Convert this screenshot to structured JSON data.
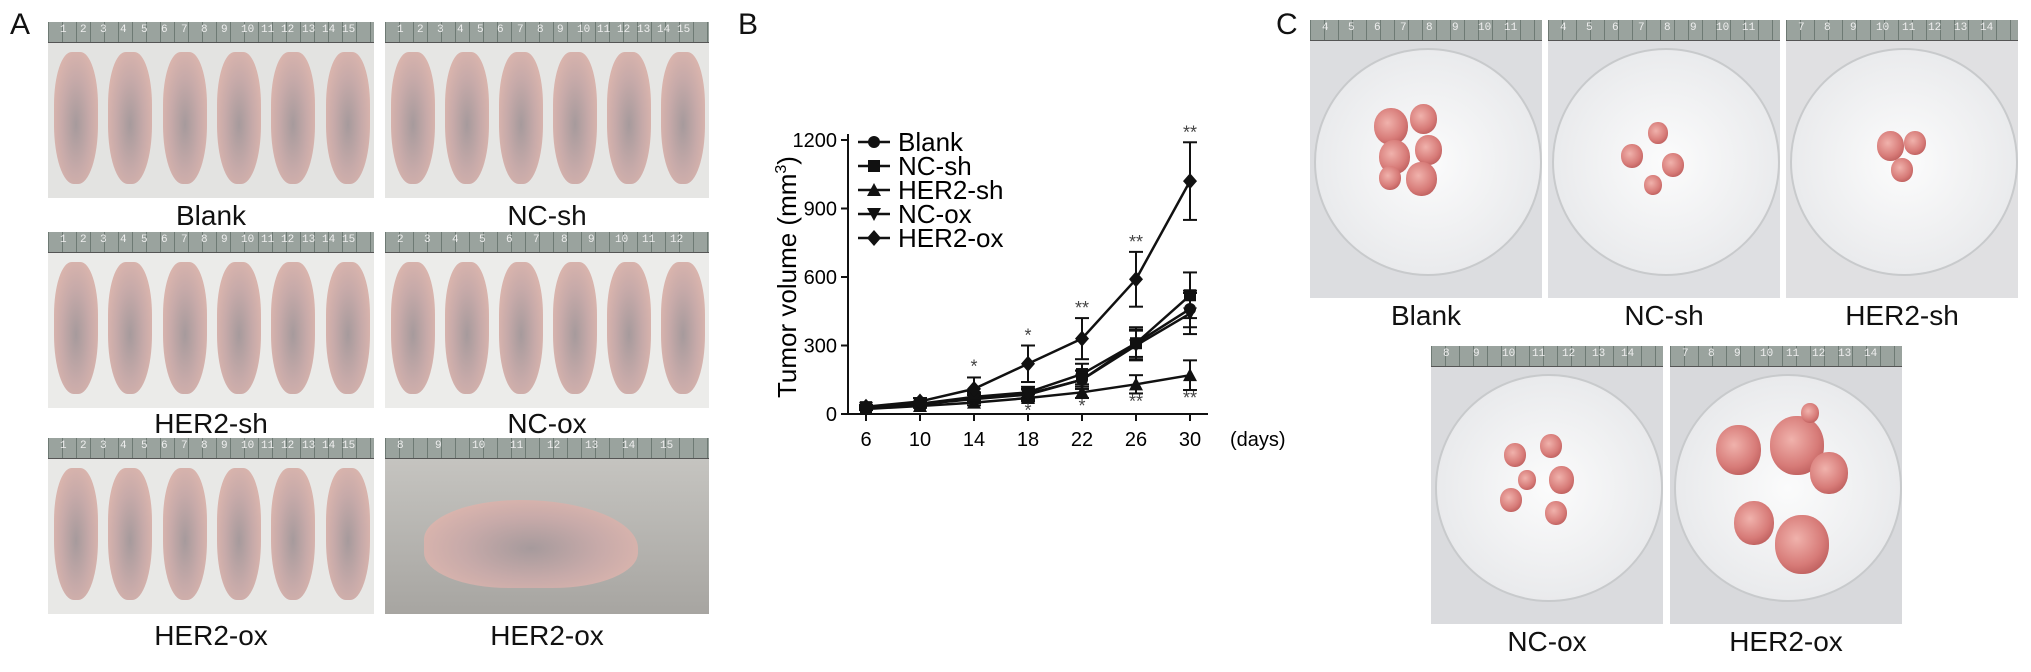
{
  "panels": {
    "a": {
      "letter": "A",
      "photos": [
        {
          "caption": "Blank",
          "mice": 6,
          "ruler": [
            "1",
            "2",
            "3",
            "4",
            "5",
            "6",
            "7",
            "8",
            "9",
            "10",
            "11",
            "12",
            "13",
            "14",
            "15"
          ]
        },
        {
          "caption": "NC-sh",
          "mice": 6,
          "ruler": [
            "1",
            "2",
            "3",
            "4",
            "5",
            "6",
            "7",
            "8",
            "9",
            "10",
            "11",
            "12",
            "13",
            "14",
            "15"
          ]
        },
        {
          "caption": "HER2-sh",
          "mice": 6,
          "ruler": [
            "1",
            "2",
            "3",
            "4",
            "5",
            "6",
            "7",
            "8",
            "9",
            "10",
            "11",
            "12",
            "13",
            "14",
            "15"
          ]
        },
        {
          "caption": "NC-ox",
          "mice": 6,
          "ruler": [
            "2",
            "3",
            "4",
            "5",
            "6",
            "7",
            "8",
            "9",
            "10",
            "11",
            "12"
          ]
        },
        {
          "caption": "HER2-ox",
          "mice": 6,
          "ruler": [
            "1",
            "2",
            "3",
            "4",
            "5",
            "6",
            "7",
            "8",
            "9",
            "10",
            "11",
            "12",
            "13",
            "14",
            "15"
          ]
        },
        {
          "caption": "HER2-ox",
          "mice": 1,
          "ruler": [
            "8",
            "9",
            "10",
            "11",
            "12",
            "13",
            "14",
            "15"
          ]
        }
      ]
    },
    "b": {
      "letter": "B"
    },
    "c": {
      "letter": "C",
      "photos": [
        {
          "caption": "Blank",
          "ruler": [
            "4",
            "5",
            "6",
            "7",
            "8",
            "9",
            "10",
            "11"
          ]
        },
        {
          "caption": "NC-sh",
          "ruler": [
            "4",
            "5",
            "6",
            "7",
            "8",
            "9",
            "10",
            "11"
          ]
        },
        {
          "caption": "HER2-sh",
          "ruler": [
            "7",
            "8",
            "9",
            "10",
            "11",
            "12",
            "13",
            "14"
          ]
        },
        {
          "caption": "NC-ox",
          "ruler": [
            "8",
            "9",
            "10",
            "11",
            "12",
            "13",
            "14"
          ]
        },
        {
          "caption": "HER2-ox",
          "ruler": [
            "7",
            "8",
            "9",
            "10",
            "11",
            "12",
            "13",
            "14"
          ]
        }
      ]
    }
  },
  "chart_data": {
    "type": "line",
    "title": "",
    "xlabel": "(days)",
    "ylabel": "Tumor volume (mm",
    "ylabel_sup": "3",
    "ylabel_close": ")",
    "x": [
      6,
      10,
      14,
      18,
      22,
      26,
      30
    ],
    "x_ticks": [
      "6",
      "10",
      "14",
      "18",
      "22",
      "26",
      "30"
    ],
    "y_ticks": [
      "0",
      "300",
      "600",
      "900",
      "1200"
    ],
    "y_tick_values": [
      0,
      300,
      600,
      900,
      1200
    ],
    "ylim": [
      0,
      1200
    ],
    "legend_position": "top-left",
    "series": [
      {
        "name": "Blank",
        "marker": "circle",
        "values": [
          28,
          42,
          68,
          88,
          150,
          310,
          460
        ],
        "errors": [
          6,
          10,
          18,
          22,
          40,
          60,
          80
        ]
      },
      {
        "name": "NC-sh",
        "marker": "square",
        "values": [
          30,
          45,
          75,
          95,
          175,
          310,
          520
        ],
        "errors": [
          6,
          10,
          20,
          24,
          45,
          70,
          100
        ]
      },
      {
        "name": "HER2-sh",
        "marker": "triangle-up",
        "values": [
          22,
          35,
          50,
          70,
          95,
          130,
          170
        ],
        "errors": [
          5,
          8,
          12,
          15,
          25,
          40,
          65
        ]
      },
      {
        "name": "NC-ox",
        "marker": "triangle-down",
        "values": [
          27,
          43,
          65,
          85,
          150,
          300,
          440
        ],
        "errors": [
          6,
          9,
          17,
          22,
          40,
          65,
          90
        ]
      },
      {
        "name": "HER2-ox",
        "marker": "diamond",
        "values": [
          32,
          55,
          110,
          220,
          330,
          590,
          1020
        ],
        "errors": [
          8,
          15,
          50,
          80,
          90,
          120,
          170
        ]
      }
    ],
    "annotations": [
      {
        "x": 14,
        "text": "*",
        "pos": "above",
        "y": 165
      },
      {
        "x": 18,
        "text": "*",
        "pos": "above",
        "y": 300
      },
      {
        "x": 18,
        "text": "*",
        "pos": "below",
        "y": 50
      },
      {
        "x": 22,
        "text": "**",
        "pos": "above",
        "y": 420
      },
      {
        "x": 22,
        "text": "*",
        "pos": "below",
        "y": 70
      },
      {
        "x": 26,
        "text": "**",
        "pos": "above",
        "y": 710
      },
      {
        "x": 26,
        "text": "**",
        "pos": "below",
        "y": 90
      },
      {
        "x": 30,
        "text": "**",
        "pos": "above",
        "y": 1190
      },
      {
        "x": 30,
        "text": "**",
        "pos": "below",
        "y": 105
      }
    ]
  }
}
